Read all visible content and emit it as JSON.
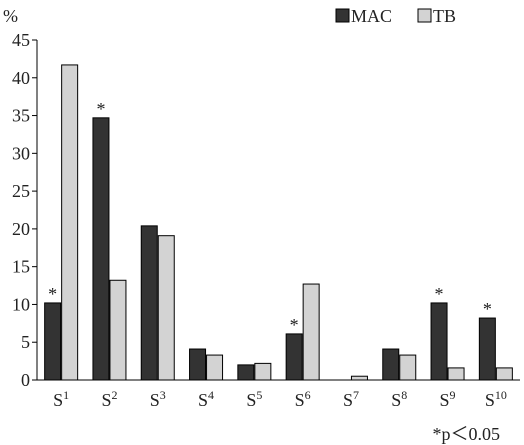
{
  "chart_data": {
    "type": "bar",
    "ylabel": "%",
    "ylim": [
      0,
      45
    ],
    "yticks": [
      0,
      5,
      10,
      15,
      20,
      25,
      30,
      35,
      40,
      45
    ],
    "grid": false,
    "legend_position": "top-right",
    "categories": [
      {
        "base": "S",
        "sup": "1"
      },
      {
        "base": "S",
        "sup": "2"
      },
      {
        "base": "S",
        "sup": "3"
      },
      {
        "base": "S",
        "sup": "4"
      },
      {
        "base": "S",
        "sup": "5"
      },
      {
        "base": "S",
        "sup": "6"
      },
      {
        "base": "S",
        "sup": "7"
      },
      {
        "base": "S",
        "sup": "8"
      },
      {
        "base": "S",
        "sup": "9"
      },
      {
        "base": "S",
        "sup": "10"
      }
    ],
    "series": [
      {
        "name": "MAC",
        "color": "#333333",
        "values": [
          10.2,
          34.7,
          20.4,
          4.1,
          2.0,
          6.1,
          0,
          4.1,
          10.2,
          8.2
        ]
      },
      {
        "name": "TB",
        "color": "#d3d3d3",
        "values": [
          41.7,
          13.2,
          19.1,
          3.3,
          2.2,
          12.7,
          0.5,
          3.3,
          1.6,
          1.6
        ]
      }
    ],
    "significance_marker": "*",
    "significant_categories": [
      0,
      1,
      5,
      8,
      9
    ],
    "footnote": "*p＜0.05"
  }
}
